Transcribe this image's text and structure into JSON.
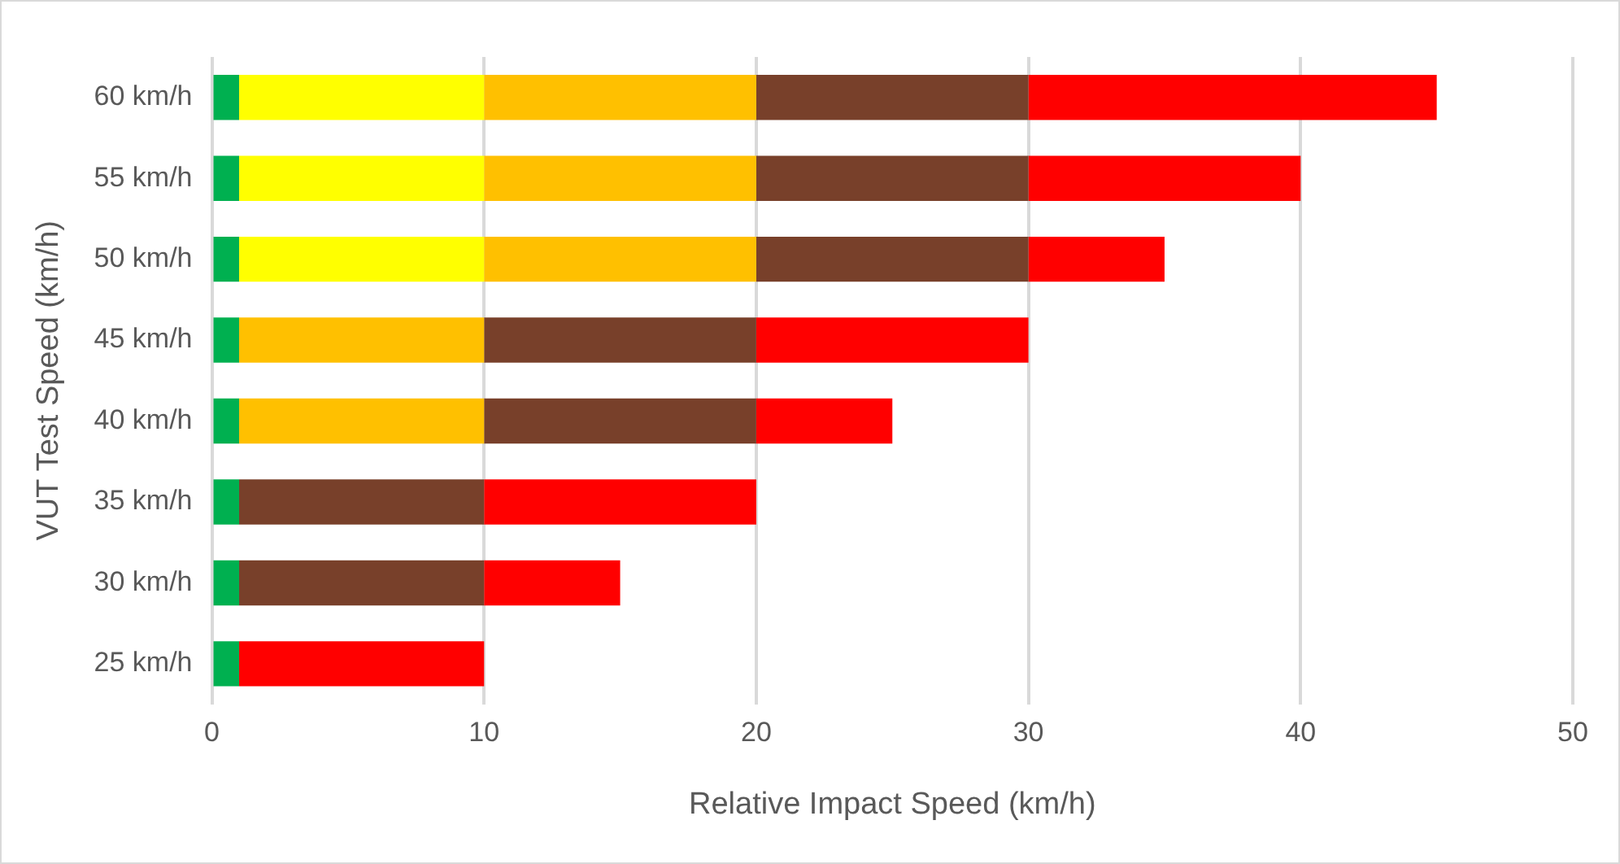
{
  "chart_data": {
    "type": "bar",
    "orientation": "horizontal",
    "stacked": true,
    "xlabel": "Relative Impact Speed (km/h)",
    "ylabel": "VUT Test Speed (km/h)",
    "categories": [
      "60 km/h",
      "55 km/h",
      "50 km/h",
      "45 km/h",
      "40 km/h",
      "35 km/h",
      "30 km/h",
      "25 km/h"
    ],
    "series": [
      {
        "color": "#00b050",
        "values": [
          1,
          1,
          1,
          1,
          1,
          1,
          1,
          1
        ]
      },
      {
        "color": "#ffff00",
        "values": [
          9,
          9,
          9,
          null,
          null,
          null,
          null,
          null
        ]
      },
      {
        "color": "#ffc000",
        "values": [
          10,
          10,
          10,
          9,
          9,
          null,
          null,
          null
        ]
      },
      {
        "color": "#78402a",
        "values": [
          10,
          10,
          10,
          10,
          10,
          9,
          9,
          null
        ]
      },
      {
        "color": "#ff0000",
        "values": [
          15,
          10,
          5,
          10,
          5,
          10,
          5,
          9
        ]
      }
    ],
    "xlim": [
      0,
      50
    ],
    "xticks": [
      0,
      10,
      20,
      30,
      40,
      50
    ],
    "grid": "x",
    "legend": false
  }
}
